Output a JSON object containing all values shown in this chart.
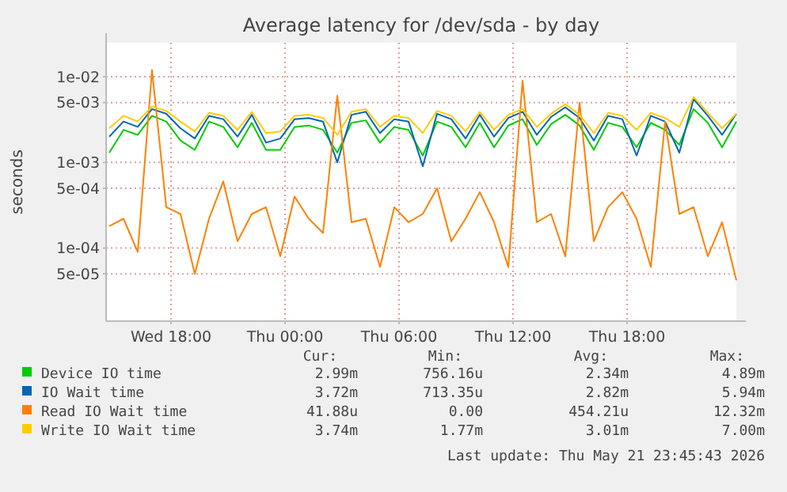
{
  "chart_data": {
    "type": "line",
    "title": "Average latency for /dev/sda - by day",
    "ylabel": "seconds",
    "log": "y",
    "grid": true,
    "legend": "bottom",
    "marker": "none",
    "line_style": "solid",
    "x": [
      "2026-05-20T14:45",
      "2026-05-20T15:30",
      "2026-05-20T16:15",
      "2026-05-20T17:00",
      "2026-05-20T17:45",
      "2026-05-20T18:30",
      "2026-05-20T19:15",
      "2026-05-20T20:00",
      "2026-05-20T20:45",
      "2026-05-20T21:30",
      "2026-05-20T22:15",
      "2026-05-20T23:00",
      "2026-05-20T23:45",
      "2026-05-21T00:30",
      "2026-05-21T01:15",
      "2026-05-21T02:00",
      "2026-05-21T02:45",
      "2026-05-21T03:30",
      "2026-05-21T04:15",
      "2026-05-21T05:00",
      "2026-05-21T05:45",
      "2026-05-21T06:30",
      "2026-05-21T07:15",
      "2026-05-21T08:00",
      "2026-05-21T08:45",
      "2026-05-21T09:30",
      "2026-05-21T10:15",
      "2026-05-21T11:00",
      "2026-05-21T11:45",
      "2026-05-21T12:30",
      "2026-05-21T13:15",
      "2026-05-21T14:00",
      "2026-05-21T14:45",
      "2026-05-21T15:30",
      "2026-05-21T16:15",
      "2026-05-21T17:00",
      "2026-05-21T17:45",
      "2026-05-21T18:30",
      "2026-05-21T19:15",
      "2026-05-21T20:00",
      "2026-05-21T20:45",
      "2026-05-21T21:30",
      "2026-05-21T22:15",
      "2026-05-21T23:00",
      "2026-05-21T23:45"
    ],
    "xlim": [
      "2026-05-20T14:35",
      "2026-05-21T23:45"
    ],
    "xticks": [
      {
        "value": "2026-05-20T18:00",
        "label": "Wed 18:00"
      },
      {
        "value": "2026-05-21T00:00",
        "label": "Thu 00:00"
      },
      {
        "value": "2026-05-21T06:00",
        "label": "Thu 06:00"
      },
      {
        "value": "2026-05-21T12:00",
        "label": "Thu 12:00"
      },
      {
        "value": "2026-05-21T18:00",
        "label": "Thu 18:00"
      }
    ],
    "ylim": [
      1.4e-05,
      0.025
    ],
    "yticks": [
      {
        "value": 5e-05,
        "label": "5e-05"
      },
      {
        "value": 0.0001,
        "label": "1e-04"
      },
      {
        "value": 0.0005,
        "label": "5e-04"
      },
      {
        "value": 0.001,
        "label": "1e-03"
      },
      {
        "value": 0.005,
        "label": "5e-03"
      },
      {
        "value": 0.01,
        "label": "1e-02"
      }
    ],
    "series": [
      {
        "name": "Device IO time",
        "color": "#00cc00",
        "values": [
          0.0013,
          0.0024,
          0.0021,
          0.0035,
          0.003,
          0.0018,
          0.0014,
          0.003,
          0.0026,
          0.0015,
          0.0029,
          0.0014,
          0.0014,
          0.0026,
          0.0027,
          0.0024,
          0.0013,
          0.0029,
          0.0031,
          0.0017,
          0.0026,
          0.0024,
          0.0012,
          0.003,
          0.0026,
          0.0015,
          0.0029,
          0.0015,
          0.0027,
          0.0032,
          0.0016,
          0.0028,
          0.0036,
          0.0027,
          0.0014,
          0.0029,
          0.0026,
          0.0015,
          0.0029,
          0.0024,
          0.0016,
          0.0042,
          0.0029,
          0.0015,
          0.003
        ]
      },
      {
        "name": "IO Wait time",
        "color": "#0066b3",
        "values": [
          0.002,
          0.003,
          0.0026,
          0.0042,
          0.0037,
          0.0025,
          0.0019,
          0.0035,
          0.0032,
          0.002,
          0.0036,
          0.0017,
          0.0019,
          0.0032,
          0.0033,
          0.003,
          0.001,
          0.0036,
          0.0039,
          0.0022,
          0.0032,
          0.003,
          0.0009,
          0.0037,
          0.0032,
          0.0019,
          0.0036,
          0.002,
          0.0033,
          0.0039,
          0.0021,
          0.0034,
          0.0044,
          0.0033,
          0.0018,
          0.0035,
          0.0032,
          0.0012,
          0.0035,
          0.003,
          0.0013,
          0.0055,
          0.0035,
          0.0021,
          0.0037
        ]
      },
      {
        "name": "Read IO Wait time",
        "color": "#ff8000",
        "values": [
          0.00018,
          0.00022,
          9e-05,
          0.012,
          0.0003,
          0.00025,
          5e-05,
          0.00022,
          0.0006,
          0.00012,
          0.00025,
          0.0003,
          8e-05,
          0.0004,
          0.00022,
          0.00015,
          0.006,
          0.0002,
          0.00022,
          6e-05,
          0.0003,
          0.0002,
          0.00025,
          0.0005,
          0.00012,
          0.00022,
          0.00045,
          0.0002,
          6e-05,
          0.009,
          0.0002,
          0.00025,
          8e-05,
          0.005,
          0.00012,
          0.0003,
          0.00045,
          0.00022,
          6e-05,
          0.003,
          0.00025,
          0.0003,
          8e-05,
          0.0002,
          4.2e-05
        ]
      },
      {
        "name": "Write IO Wait time",
        "color": "#ffcc00",
        "values": [
          0.0025,
          0.0035,
          0.003,
          0.0045,
          0.004,
          0.003,
          0.0023,
          0.0038,
          0.0035,
          0.0024,
          0.0039,
          0.0022,
          0.0023,
          0.0035,
          0.0036,
          0.0033,
          0.0021,
          0.0039,
          0.0042,
          0.0026,
          0.0035,
          0.0033,
          0.0022,
          0.004,
          0.0035,
          0.0023,
          0.0039,
          0.0024,
          0.0036,
          0.0042,
          0.0026,
          0.0037,
          0.0048,
          0.0036,
          0.0022,
          0.0038,
          0.0035,
          0.0024,
          0.0038,
          0.0033,
          0.0026,
          0.0058,
          0.0038,
          0.0025,
          0.0037
        ]
      }
    ],
    "annotations": [
      "Cur:",
      "Min:",
      "Avg:",
      "Max:",
      "2.99m",
      "756.16u",
      "2.34m",
      "4.89m",
      "3.72m",
      "713.35u",
      "2.82m",
      "5.94m",
      "41.88u",
      "0.00",
      "454.21u",
      "12.32m",
      "3.74m",
      "1.77m",
      "3.01m",
      "7.00m",
      "Last update: Thu May 21 23:45:43 2026"
    ]
  }
}
